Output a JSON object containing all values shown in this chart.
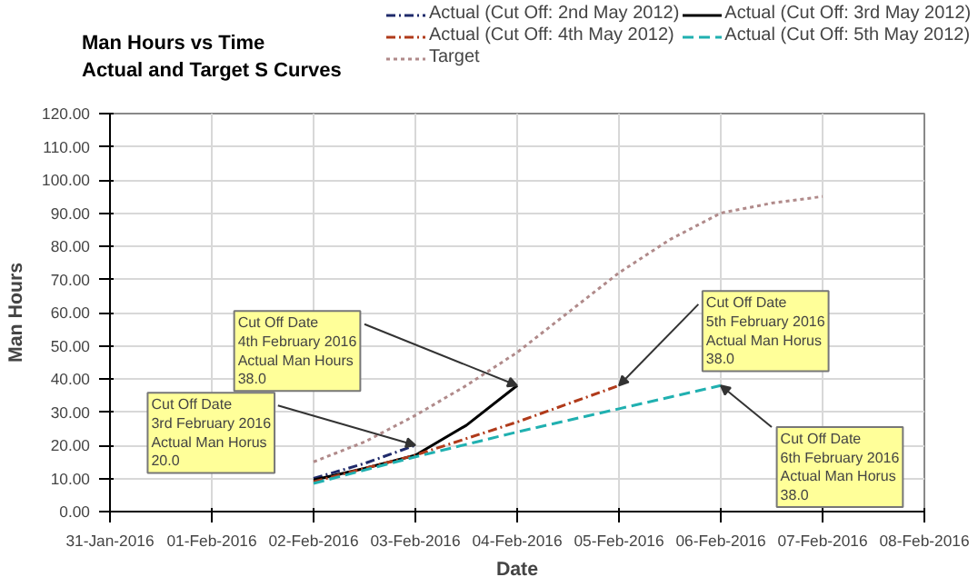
{
  "chart_data": {
    "type": "line",
    "title": "Man Hours vs Time",
    "subtitle": "Actual and Target S Curves",
    "xlabel": "Date",
    "ylabel": "Man Hours",
    "series": [
      {
        "name": "Actual (Cut Off: 2nd May 2012)",
        "color": "#1f2a6b",
        "line_style": "dashdot",
        "x": [
          "2016-02-02",
          "2016-02-02T12:00",
          "2016-02-03"
        ],
        "values": [
          10,
          14.5,
          20
        ]
      },
      {
        "name": "Actual (Cut Off: 3rd May 2012)",
        "color": "#000000",
        "line_style": "solid",
        "x": [
          "2016-02-02",
          "2016-02-02T12:00",
          "2016-02-03",
          "2016-02-03T12:00",
          "2016-02-04"
        ],
        "values": [
          9.5,
          13,
          17,
          26,
          38
        ]
      },
      {
        "name": "Actual (Cut Off: 4th May 2012)",
        "color": "#b03a1a",
        "line_style": "dashdot",
        "x": [
          "2016-02-02",
          "2016-02-03",
          "2016-02-04",
          "2016-02-05"
        ],
        "values": [
          9,
          17,
          27,
          38
        ]
      },
      {
        "name": "Actual (Cut Off: 5th May 2012)",
        "color": "#20b0b0",
        "line_style": "dashed",
        "x": [
          "2016-02-02",
          "2016-02-03",
          "2016-02-04",
          "2016-02-05",
          "2016-02-06"
        ],
        "values": [
          8.5,
          16.5,
          24,
          31,
          38
        ]
      },
      {
        "name": "Target",
        "color": "#b08a8a",
        "line_style": "dotted",
        "x": [
          "2016-02-02",
          "2016-02-02T12:00",
          "2016-02-03",
          "2016-02-03T12:00",
          "2016-02-04",
          "2016-02-04T12:00",
          "2016-02-05",
          "2016-02-05T12:00",
          "2016-02-06",
          "2016-02-06T12:00",
          "2016-02-07"
        ],
        "values": [
          15,
          21,
          29,
          38,
          48,
          60,
          72,
          82,
          90,
          93,
          95
        ]
      }
    ],
    "xlim": [
      "2016-01-31",
      "2016-02-08"
    ],
    "xticks": [
      {
        "value": "2016-01-31",
        "label": "31-Jan-2016"
      },
      {
        "value": "2016-02-01",
        "label": "01-Feb-2016"
      },
      {
        "value": "2016-02-02",
        "label": "02-Feb-2016"
      },
      {
        "value": "2016-02-03",
        "label": "03-Feb-2016"
      },
      {
        "value": "2016-02-04",
        "label": "04-Feb-2016"
      },
      {
        "value": "2016-02-05",
        "label": "05-Feb-2016"
      },
      {
        "value": "2016-02-06",
        "label": "06-Feb-2016"
      },
      {
        "value": "2016-02-07",
        "label": "07-Feb-2016"
      },
      {
        "value": "2016-02-08",
        "label": "08-Feb-2016"
      }
    ],
    "ylim": [
      0,
      120
    ],
    "yticks": [
      {
        "value": 0,
        "label": "0.00"
      },
      {
        "value": 10,
        "label": "10.00"
      },
      {
        "value": 20,
        "label": "20.00"
      },
      {
        "value": 30,
        "label": "30.00"
      },
      {
        "value": 40,
        "label": "40.00"
      },
      {
        "value": 50,
        "label": "50.00"
      },
      {
        "value": 60,
        "label": "60.00"
      },
      {
        "value": 70,
        "label": "70.00"
      },
      {
        "value": 80,
        "label": "80.00"
      },
      {
        "value": 90,
        "label": "90.00"
      },
      {
        "value": 100,
        "label": "100.00"
      },
      {
        "value": 110,
        "label": "110.00"
      },
      {
        "value": 120,
        "label": "120.00"
      }
    ],
    "grid": true,
    "legend": "top",
    "annotations": [
      {
        "text": "Cut Off Date\n3rd February 2016\nActual Man Horus\n20.0",
        "x": "2016-02-03",
        "y": 20
      },
      {
        "text": "Cut Off Date\n4th February 2016\nActual Man Hours\n38.0",
        "x": "2016-02-04",
        "y": 38
      },
      {
        "text": "Cut Off Date\n5th February 2016\nActual Man Horus\n38.0",
        "x": "2016-02-05",
        "y": 38
      },
      {
        "text": "Cut Off Date\n6th February 2016\nActual Man Horus\n38.0",
        "x": "2016-02-06",
        "y": 38
      }
    ]
  }
}
